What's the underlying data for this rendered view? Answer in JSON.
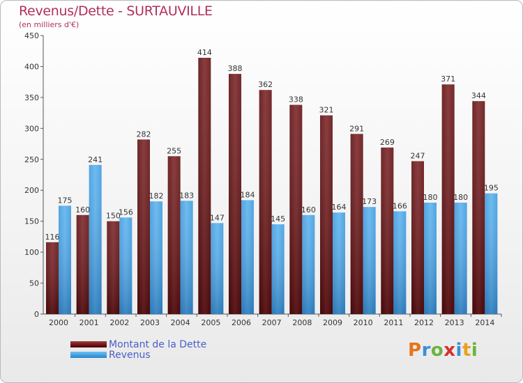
{
  "header": {
    "title": "Revenus/Dette - SURTAUVILLE",
    "subtitle": "(en milliers d'€)"
  },
  "legend": {
    "items": [
      {
        "label": "Montant de la Dette"
      },
      {
        "label": "Revenus"
      }
    ]
  },
  "logo": {
    "text": "Proxiti"
  },
  "colors": {
    "dette": "#6e1214",
    "revenus": "#3f9ee0",
    "title": "#b0305a",
    "legend_text": "#4a5ec8"
  },
  "chart_data": {
    "type": "bar",
    "categories": [
      "2000",
      "2001",
      "2002",
      "2003",
      "2004",
      "2005",
      "2006",
      "2007",
      "2008",
      "2009",
      "2010",
      "2011",
      "2012",
      "2013",
      "2014"
    ],
    "series": [
      {
        "name": "Montant de la Dette",
        "values": [
          116,
          160,
          150,
          282,
          255,
          414,
          388,
          362,
          338,
          321,
          291,
          269,
          247,
          371,
          344
        ]
      },
      {
        "name": "Revenus",
        "values": [
          175,
          241,
          156,
          182,
          183,
          147,
          184,
          145,
          160,
          164,
          173,
          166,
          180,
          180,
          195
        ]
      }
    ],
    "title": "Revenus/Dette - SURTAUVILLE",
    "ylabel": "(en milliers d'€)",
    "ylim": [
      0,
      450
    ],
    "yticks": [
      0,
      50,
      100,
      150,
      200,
      250,
      300,
      350,
      400,
      450
    ],
    "grid": false,
    "legend_position": "bottom-left"
  }
}
